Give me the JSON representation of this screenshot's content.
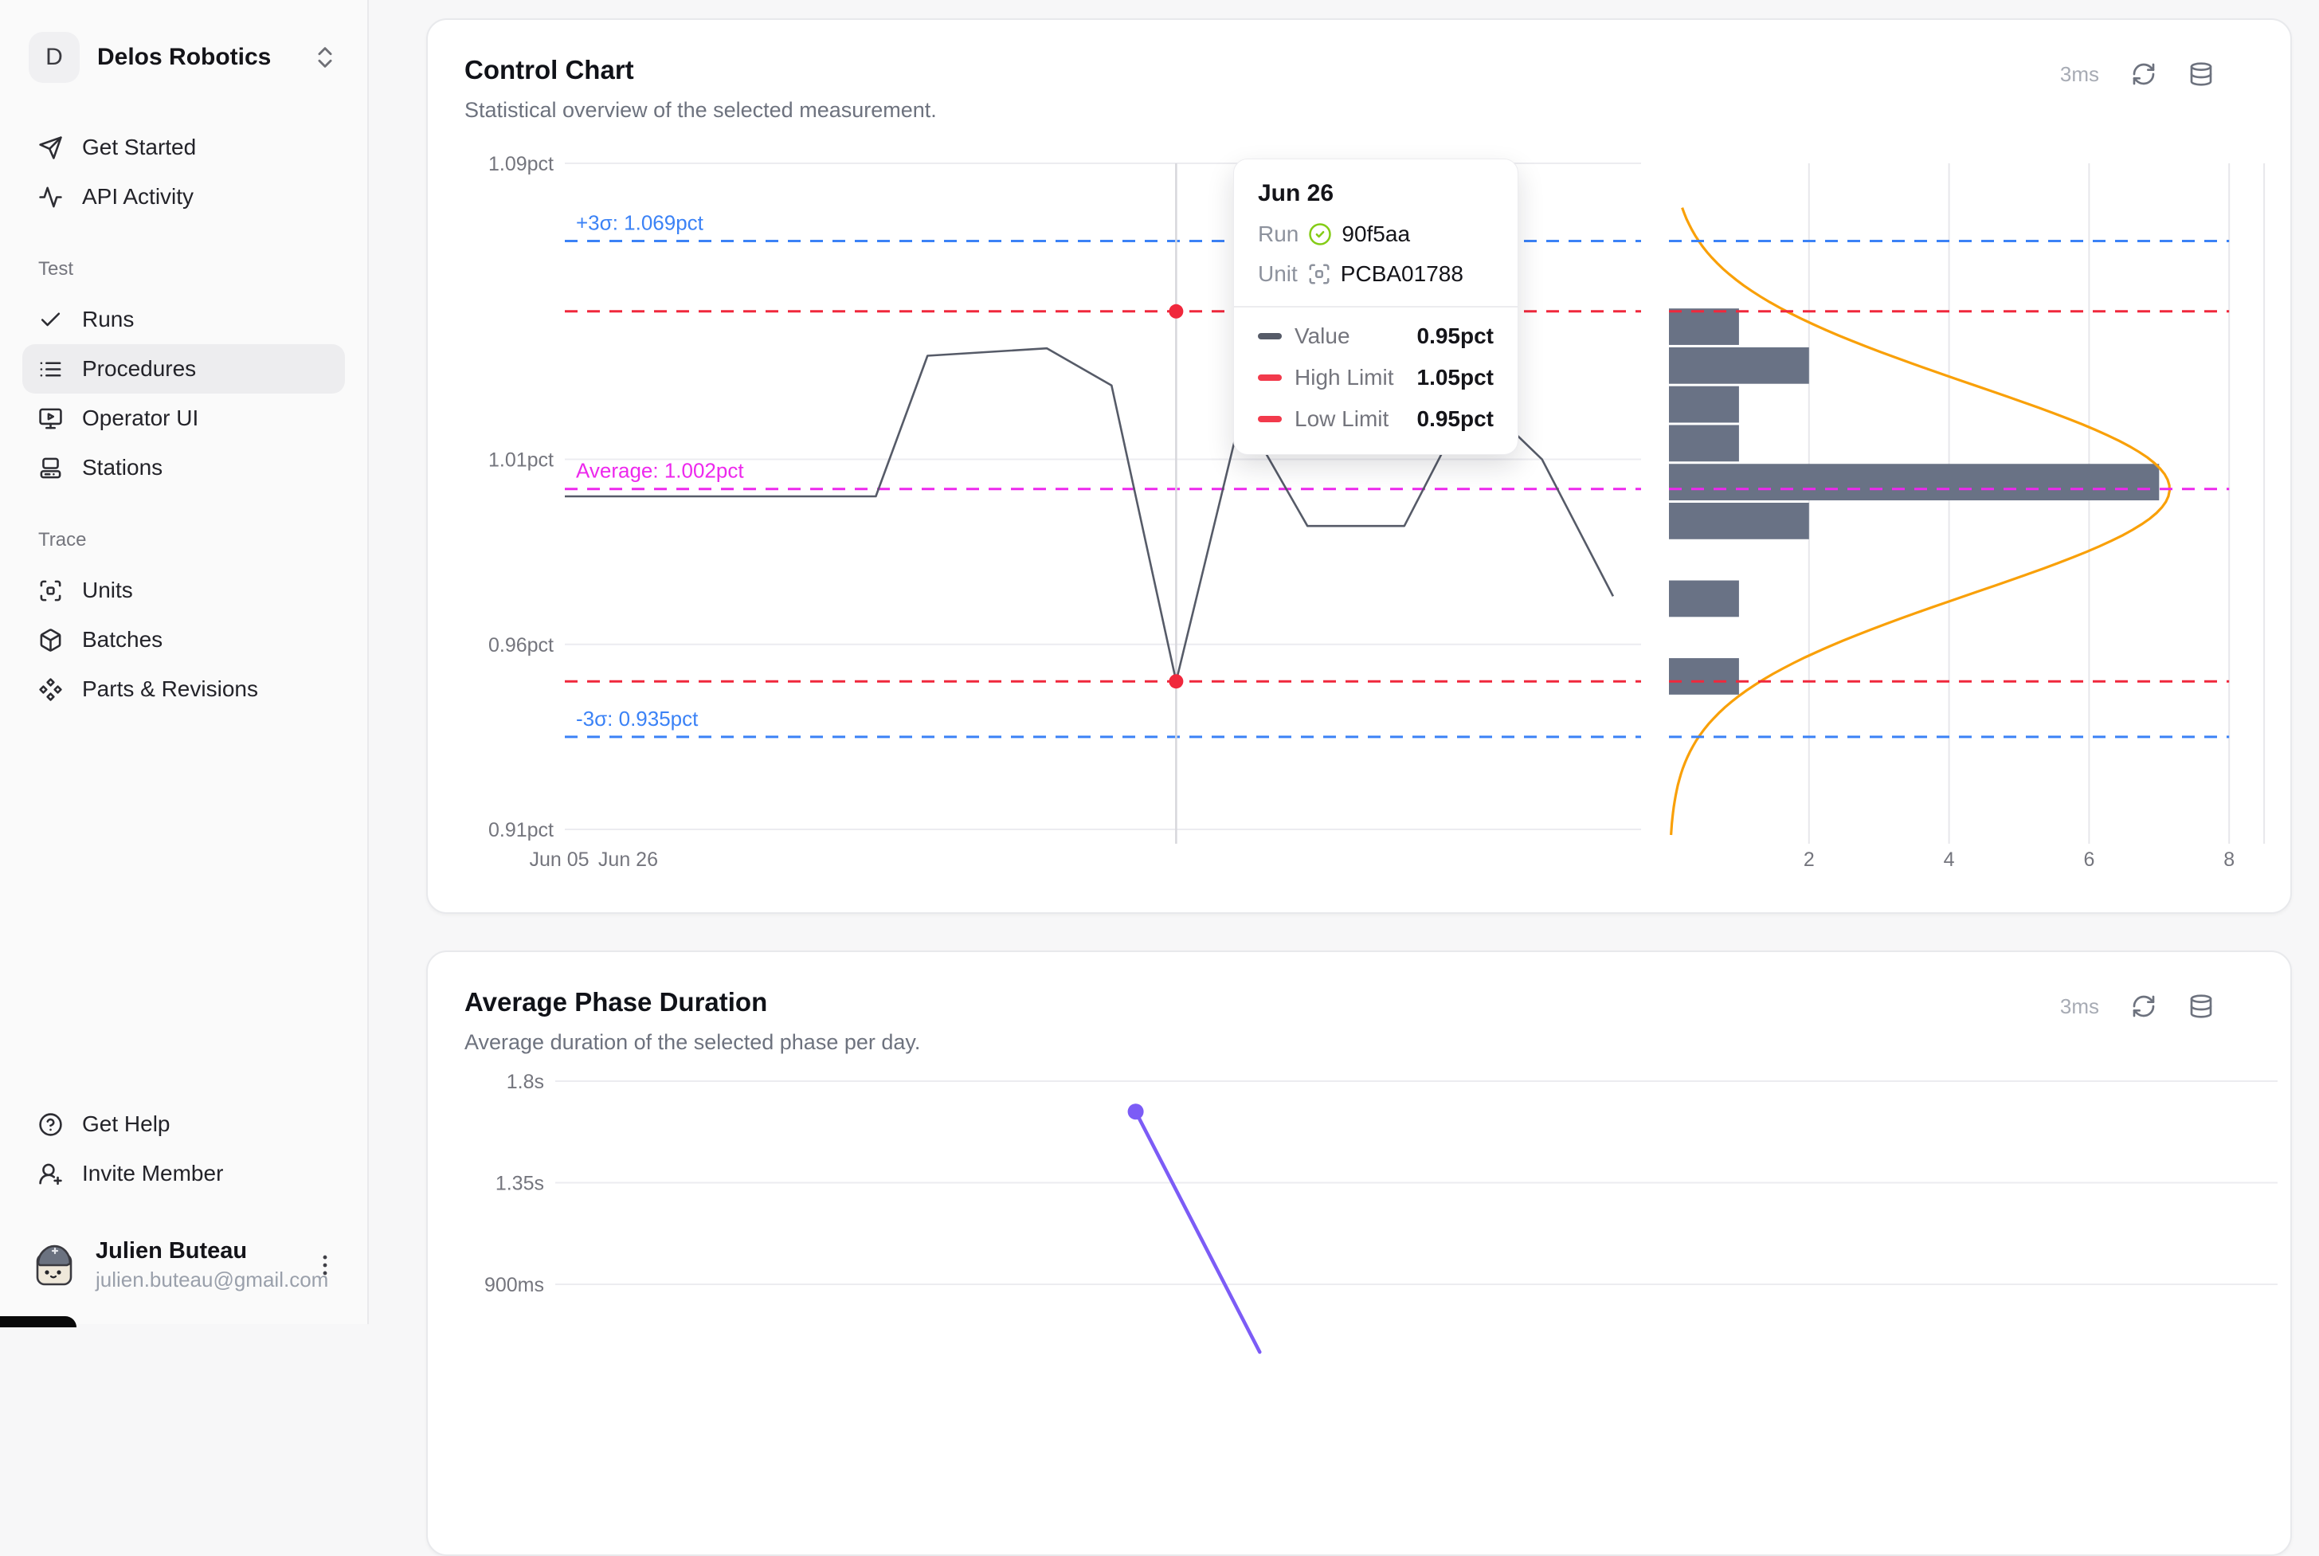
{
  "sidebar": {
    "workspace": {
      "initial": "D",
      "name": "Delos Robotics"
    },
    "sections": [
      {
        "label": "",
        "items": [
          {
            "icon": "send-icon",
            "label": "Get Started"
          },
          {
            "icon": "activity-icon",
            "label": "API Activity"
          }
        ]
      },
      {
        "label": "Test",
        "items": [
          {
            "icon": "check-icon",
            "label": "Runs"
          },
          {
            "icon": "list-icon",
            "label": "Procedures",
            "active": true
          },
          {
            "icon": "monitor-play-icon",
            "label": "Operator UI"
          },
          {
            "icon": "station-icon",
            "label": "Stations"
          }
        ]
      },
      {
        "label": "Trace",
        "items": [
          {
            "icon": "scan-icon",
            "label": "Units"
          },
          {
            "icon": "package-icon",
            "label": "Batches"
          },
          {
            "icon": "component-icon",
            "label": "Parts & Revisions"
          }
        ]
      }
    ],
    "footer_items": [
      {
        "icon": "help-icon",
        "label": "Get Help"
      },
      {
        "icon": "user-plus-icon",
        "label": "Invite Member"
      }
    ],
    "user": {
      "name": "Julien Buteau",
      "email": "julien.buteau@gmail.com"
    }
  },
  "cards": {
    "control": {
      "title": "Control Chart",
      "subtitle": "Statistical overview of the selected measurement.",
      "latency": "3ms"
    },
    "phase": {
      "title": "Average Phase Duration",
      "subtitle": "Average duration of the selected phase per day.",
      "latency": "3ms"
    }
  },
  "tooltip": {
    "title": "Jun 26",
    "run_label": "Run",
    "run_id": "90f5aa",
    "unit_label": "Unit",
    "unit_id": "PCBA01788",
    "rows": [
      {
        "label": "Value",
        "value": "0.95pct",
        "color": "#565b68"
      },
      {
        "label": "High Limit",
        "value": "1.05pct",
        "color": "#f23a4c"
      },
      {
        "label": "Low Limit",
        "value": "0.95pct",
        "color": "#f23a4c"
      }
    ]
  },
  "chart_data": [
    {
      "type": "line",
      "title": "Control Chart",
      "value_unit": "pct",
      "ylim": [
        0.91,
        1.09
      ],
      "y_ticks": [
        {
          "v": 1.09,
          "label": "1.09pct"
        },
        {
          "v": 1.01,
          "label": "1.01pct"
        },
        {
          "v": 0.96,
          "label": "0.96pct"
        },
        {
          "v": 0.91,
          "label": "0.91pct"
        }
      ],
      "x_tick_labels": [
        {
          "f": 0.0,
          "label": "Jun 05"
        },
        {
          "f": 0.064,
          "label": "Jun 26"
        }
      ],
      "limit_lines": [
        {
          "label": "+3σ: 1.069pct",
          "v": 1.069,
          "color": "#3b82f6"
        },
        {
          "label": "",
          "v": 1.05,
          "color": "#f0283c"
        },
        {
          "label": "Average: 1.002pct",
          "v": 1.002,
          "color": "#ed28ed"
        },
        {
          "label": "",
          "v": 0.95,
          "color": "#f0283c"
        },
        {
          "label": "-3σ: 0.935pct",
          "v": 0.935,
          "color": "#3b82f6"
        }
      ],
      "series": {
        "name": "Value",
        "color": "#565b68",
        "points": [
          {
            "f": 0.0,
            "v": 1.0
          },
          {
            "f": 0.048,
            "v": 1.0
          },
          {
            "f": 0.096,
            "v": 1.0
          },
          {
            "f": 0.145,
            "v": 1.0
          },
          {
            "f": 0.193,
            "v": 1.0
          },
          {
            "f": 0.241,
            "v": 1.0
          },
          {
            "f": 0.289,
            "v": 1.0
          },
          {
            "f": 0.337,
            "v": 1.038
          },
          {
            "f": 0.448,
            "v": 1.04
          },
          {
            "f": 0.508,
            "v": 1.03
          },
          {
            "f": 0.568,
            "v": 0.95
          },
          {
            "f": 0.629,
            "v": 1.023
          },
          {
            "f": 0.69,
            "v": 0.992
          },
          {
            "f": 0.78,
            "v": 0.992
          },
          {
            "f": 0.844,
            "v": 1.028
          },
          {
            "f": 0.908,
            "v": 1.01
          },
          {
            "f": 0.974,
            "v": 0.973
          }
        ]
      },
      "cursor": {
        "f": 0.568,
        "marker_values": [
          1.05,
          0.95
        ],
        "marker_color": "#f0283c",
        "line_color": "#d7d7dc"
      }
    },
    {
      "type": "bar",
      "orientation": "horizontal",
      "title": "Distribution histogram",
      "x_ticks": [
        "2",
        "4",
        "6",
        "8"
      ],
      "xlim": [
        0,
        8.6
      ],
      "bins": {
        "top_value": 1.0511,
        "bin_size": 0.0105,
        "counts": [
          1,
          2,
          1,
          1,
          7,
          2,
          0,
          1,
          0,
          1
        ]
      },
      "bar_color": "#697285",
      "curve": {
        "color": "#f9a008",
        "mean": 1.002,
        "sigma": 0.0282,
        "amplitude": 7.15
      }
    },
    {
      "type": "line",
      "title": "Average Phase Duration",
      "y_ticks": [
        {
          "v": 1.8,
          "label": "1.8s"
        },
        {
          "v": 1.35,
          "label": "1.35s"
        },
        {
          "v": 0.9,
          "label": "900ms"
        }
      ],
      "series": {
        "color": "#7c5cf6",
        "points": [
          {
            "f": 0.337,
            "v": 1.665
          },
          {
            "f": 0.409,
            "v": 0.6
          }
        ],
        "marker_index": 0
      }
    }
  ]
}
